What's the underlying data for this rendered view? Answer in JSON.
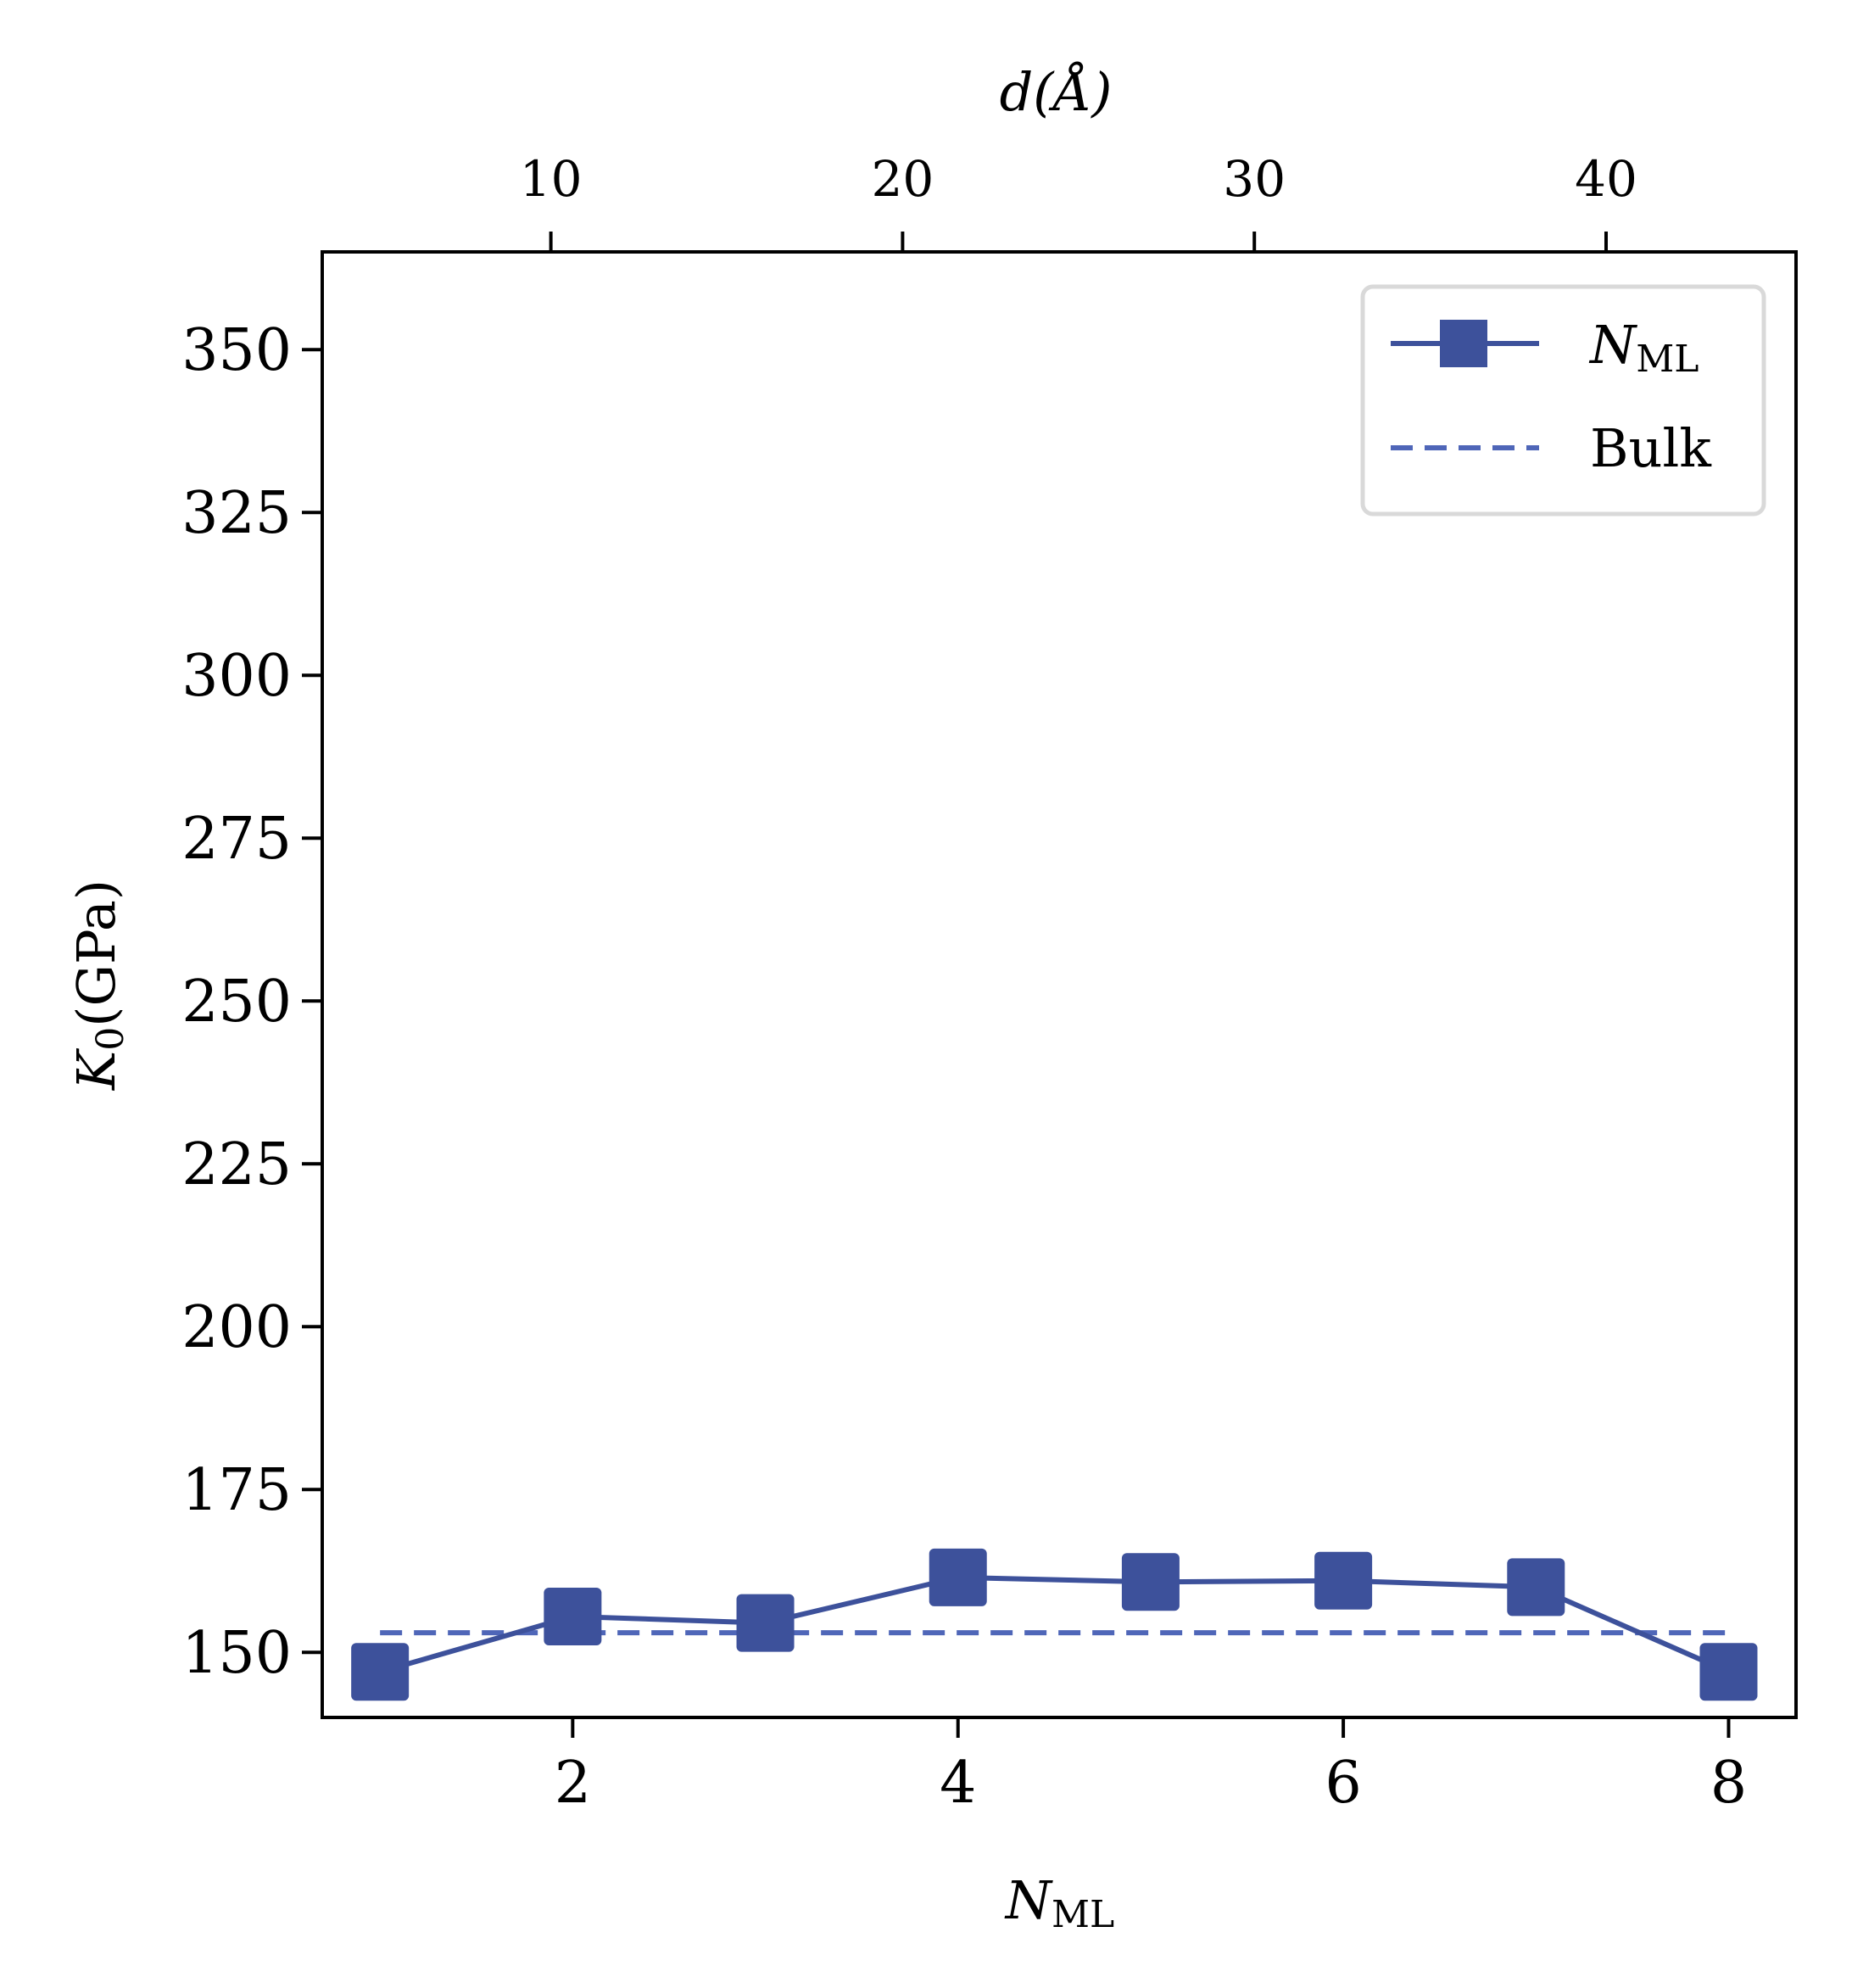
{
  "chart_data": {
    "type": "line",
    "xlabel_main": "N",
    "xlabel_sub": "ML",
    "top_xlabel": "d(Å)",
    "ylabel_main": "K",
    "ylabel_sub": "0",
    "ylabel_unit": "(GPa)",
    "xlim": [
      0.7,
      8.35
    ],
    "ylim": [
      140,
      365
    ],
    "top_xlim": [
      3.5,
      45.4
    ],
    "x_ticks": [
      2,
      4,
      6,
      8
    ],
    "y_ticks": [
      150,
      175,
      200,
      225,
      250,
      275,
      300,
      325,
      350
    ],
    "top_ticks": [
      10,
      20,
      30,
      40
    ],
    "x_tick_labels": [
      "2",
      "4",
      "6",
      "8"
    ],
    "y_tick_labels": [
      "150",
      "175",
      "200",
      "225",
      "250",
      "275",
      "300",
      "325",
      "350"
    ],
    "top_tick_labels": [
      "10",
      "20",
      "30",
      "40"
    ],
    "series": [
      {
        "name": "N",
        "name_sub": "ML",
        "style": "solid-square",
        "color": "#3d519b",
        "x": [
          1,
          2,
          3,
          4,
          5,
          6,
          7,
          8
        ],
        "y": [
          147,
          155.5,
          154.5,
          161.5,
          160.8,
          161,
          160,
          147
        ]
      },
      {
        "name": "Bulk",
        "style": "dashed",
        "color": "#4f66b8",
        "x": [
          1,
          8
        ],
        "y": [
          153,
          153
        ]
      }
    ],
    "legend_position": "top-right",
    "grid": false
  }
}
